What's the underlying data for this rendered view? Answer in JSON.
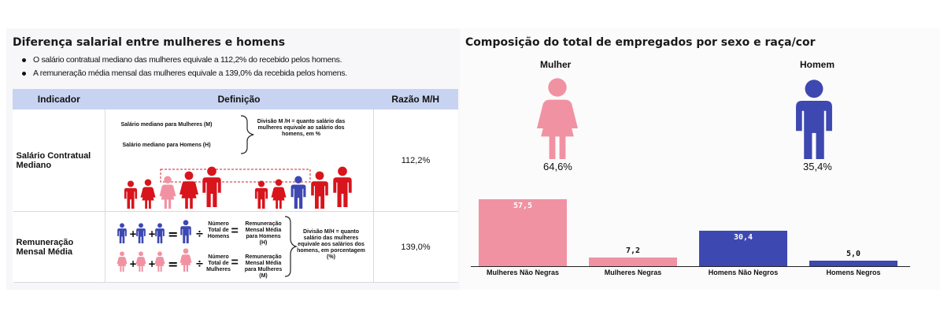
{
  "left": {
    "title": "Diferença salarial entre mulheres e homens",
    "bullets": [
      "O salário contratual mediano das mulheres equivale a 112,2% do recebido pelos homens.",
      "A remuneração média mensal das mulheres equivale a 139,0% da recebida pelos homens."
    ],
    "table": {
      "headers": [
        "Indicador",
        "Definição",
        "Razão M/H"
      ],
      "rows": [
        {
          "indicator": "Salário Contratual Mediano",
          "def_line1": "Salário mediano para Mulheres (M)",
          "def_line2": "Salário mediano para Homens (H)",
          "def_note": "Divisão M /H = quanto salário das mulheres equivale ao salário dos homens, em %",
          "ratio": "112,2%"
        },
        {
          "indicator": "Remuneração Mensal Média",
          "num_total_h": "Número Total de Homens",
          "num_total_m": "Número Total de Mulheres",
          "rem_h": "Remuneração Mensal Média para Homens (H)",
          "rem_m": "Remuneração Mensal Média para Mulheres (M)",
          "def_note": "Divisão M/H = quanto salário das mulheres equivale aos salários dos homens, em porcentagem (%)",
          "ratio": "139,0%"
        }
      ]
    }
  },
  "right": {
    "title": "Composição do total de empregados por sexo e raça/cor",
    "female_label": "Mulher",
    "male_label": "Homem",
    "female_pct": "64,6%",
    "male_pct": "35,4%",
    "colors": {
      "female": "#f192a3",
      "male": "#3d48b0",
      "red": "#d8141c"
    }
  },
  "chart_data": {
    "type": "bar",
    "categories": [
      "Mulheres Não Negras",
      "Mulheres Negras",
      "Homens Não Negros",
      "Homens Negros"
    ],
    "values": [
      57.5,
      7.2,
      30.4,
      5.0
    ],
    "value_labels": [
      "57,5",
      "7,2",
      "30,4",
      "5,0"
    ],
    "colors": [
      "#f192a3",
      "#f192a3",
      "#3d48b0",
      "#3d48b0"
    ],
    "title": "",
    "xlabel": "",
    "ylabel": "",
    "ylim": [
      0,
      57.5
    ]
  }
}
